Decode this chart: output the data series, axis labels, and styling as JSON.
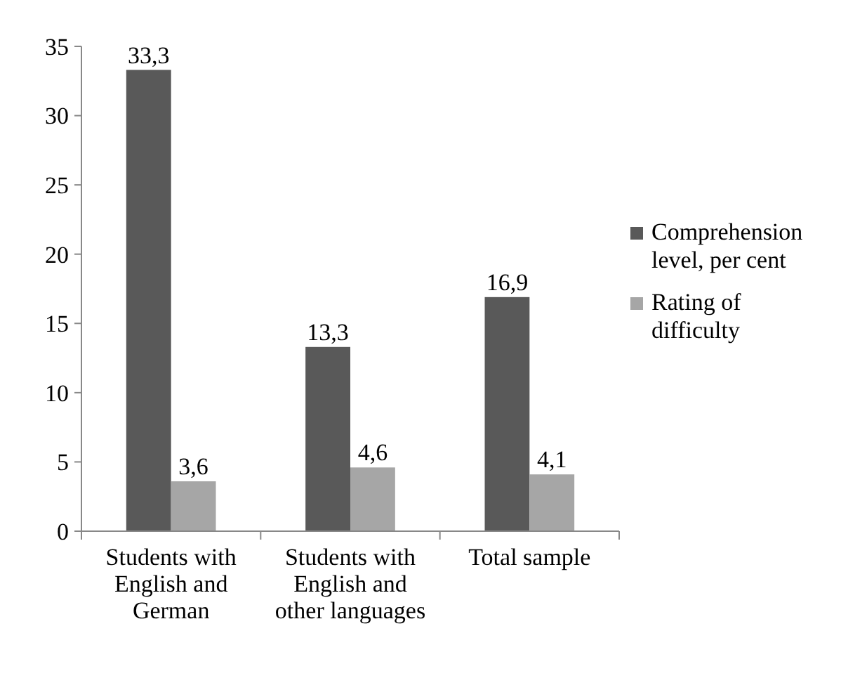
{
  "chart_data": {
    "type": "bar",
    "categories": [
      "Students with English and German",
      "Students with English and other languages",
      "Total sample"
    ],
    "series": [
      {
        "name": "Comprehension level, per cent",
        "color": "#595959",
        "values": [
          33.3,
          13.3,
          16.9
        ],
        "value_labels": [
          "33,3",
          "13,3",
          "16,9"
        ]
      },
      {
        "name": "Rating of difficulty",
        "color": "#a6a6a6",
        "values": [
          3.6,
          4.6,
          4.1
        ],
        "value_labels": [
          "3,6",
          "4,6",
          "4,1"
        ]
      }
    ],
    "ylim": [
      0,
      35
    ],
    "yticks": [
      0,
      5,
      10,
      15,
      20,
      25,
      30,
      35
    ],
    "grid": false,
    "legend": "right"
  }
}
